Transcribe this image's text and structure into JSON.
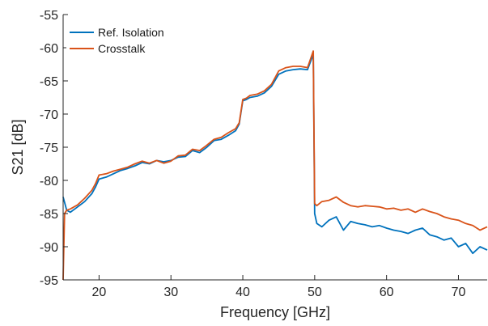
{
  "chart_data": {
    "type": "line",
    "title": "",
    "xlabel": "Frequency [GHz]",
    "ylabel": "S21 [dB]",
    "xlim": [
      15,
      74
    ],
    "ylim": [
      -95,
      -55
    ],
    "x_ticks": [
      20,
      30,
      40,
      50,
      60,
      70
    ],
    "y_ticks": [
      -55,
      -60,
      -65,
      -70,
      -75,
      -80,
      -85,
      -90,
      -95
    ],
    "grid": false,
    "legend_position": "top-left",
    "series": [
      {
        "name": "Ref. Isolation",
        "color": "#0072BD",
        "x": [
          15,
          15.5,
          16,
          17,
          18,
          19,
          19.5,
          20,
          21,
          22,
          23,
          24,
          25,
          26,
          27,
          28,
          29,
          30,
          31,
          32,
          33,
          34,
          35,
          36,
          37,
          38,
          39,
          39.5,
          40,
          40.5,
          41,
          42,
          43,
          44,
          45,
          46,
          47,
          48,
          49,
          49.8,
          50,
          50.3,
          51,
          52,
          53,
          54,
          55,
          56,
          57,
          58,
          59,
          60,
          61,
          62,
          63,
          64,
          65,
          66,
          67,
          68,
          69,
          70,
          71,
          72,
          73,
          74
        ],
        "values": [
          -82.5,
          -84.5,
          -84.8,
          -84,
          -83.2,
          -82,
          -81,
          -79.8,
          -79.5,
          -79,
          -78.5,
          -78.2,
          -77.8,
          -77.3,
          -77.5,
          -77,
          -77.2,
          -77,
          -76.5,
          -76.4,
          -75.5,
          -75.8,
          -75,
          -74,
          -73.8,
          -73.2,
          -72.5,
          -71.5,
          -68,
          -67.8,
          -67.5,
          -67.3,
          -66.8,
          -65.8,
          -64,
          -63.5,
          -63.3,
          -63.2,
          -63.3,
          -61,
          -85,
          -86.5,
          -87,
          -86,
          -85.5,
          -87.5,
          -86.2,
          -86.5,
          -86.7,
          -87,
          -86.8,
          -87.2,
          -87.5,
          -87.7,
          -88,
          -87.5,
          -87.2,
          -88.2,
          -88.5,
          -89,
          -88.7,
          -90,
          -89.5,
          -91,
          -90,
          -90.5
        ]
      },
      {
        "name": "Crosstalk",
        "color": "#D95319",
        "x": [
          15,
          15.2,
          15.5,
          16,
          17,
          18,
          19,
          19.5,
          20,
          21,
          22,
          23,
          24,
          25,
          26,
          27,
          28,
          29,
          30,
          31,
          32,
          33,
          34,
          35,
          36,
          37,
          38,
          39,
          39.5,
          40,
          40.5,
          41,
          42,
          43,
          44,
          45,
          46,
          47,
          48,
          49,
          49.8,
          50,
          50.3,
          51,
          52,
          53,
          54,
          55,
          56,
          57,
          58,
          59,
          60,
          61,
          62,
          63,
          64,
          65,
          66,
          67,
          68,
          69,
          70,
          71,
          72,
          73,
          74
        ],
        "values": [
          -95,
          -85,
          -84.5,
          -84.3,
          -83.7,
          -82.7,
          -81.5,
          -80.5,
          -79.2,
          -79,
          -78.6,
          -78.3,
          -78,
          -77.5,
          -77.1,
          -77.4,
          -77,
          -77.4,
          -77.1,
          -76.3,
          -76.2,
          -75.3,
          -75.5,
          -74.7,
          -73.8,
          -73.5,
          -72.8,
          -72.2,
          -71.3,
          -67.8,
          -67.6,
          -67.2,
          -67,
          -66.5,
          -65.5,
          -63.5,
          -63,
          -62.8,
          -62.8,
          -63,
          -60.5,
          -83.5,
          -83.8,
          -83.2,
          -83,
          -82.5,
          -83.3,
          -83.8,
          -84,
          -83.8,
          -83.9,
          -84,
          -84.3,
          -84.2,
          -84.5,
          -84.3,
          -84.8,
          -84.3,
          -84.7,
          -85,
          -85.5,
          -85.8,
          -86,
          -86.5,
          -86.8,
          -87.5,
          -87
        ]
      }
    ]
  }
}
